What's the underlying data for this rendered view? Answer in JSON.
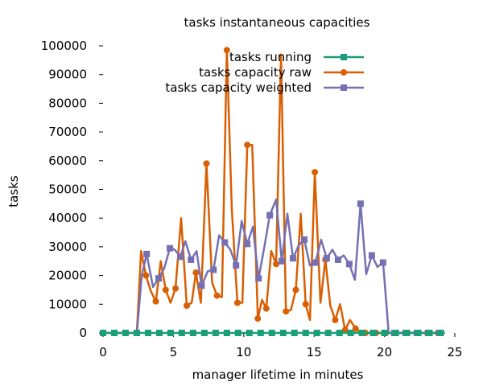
{
  "chart_data": {
    "type": "line",
    "title": "tasks instantaneous capacities",
    "xlabel": "manager lifetime in minutes",
    "ylabel": "tasks",
    "xlim": [
      0,
      25
    ],
    "ylim": [
      0,
      100000
    ],
    "xticks": [
      0,
      5,
      10,
      15,
      20,
      25
    ],
    "yticks": [
      0,
      10000,
      20000,
      30000,
      40000,
      50000,
      60000,
      70000,
      80000,
      90000,
      100000
    ],
    "xtick_labels": [
      "0",
      "5",
      "10",
      "15",
      "20",
      "25"
    ],
    "ytick_labels": [
      "0",
      "10000",
      "20000",
      "30000",
      "40000",
      "50000",
      "60000",
      "70000",
      "80000",
      "90000",
      "100000"
    ],
    "grid": false,
    "legend_position": "top-right",
    "series": [
      {
        "name": "tasks running",
        "color": "#1a9e77",
        "marker": "square",
        "marker_every": 2,
        "x": [
          0,
          0.4,
          0.8,
          1.2,
          1.6,
          2,
          2.4,
          2.8,
          3.2,
          3.6,
          4,
          4.4,
          4.8,
          5.2,
          5.6,
          6,
          6.4,
          6.8,
          7.2,
          7.6,
          8,
          8.4,
          8.8,
          9.2,
          9.6,
          10,
          10.4,
          10.8,
          11.2,
          11.6,
          12,
          12.4,
          12.8,
          13.2,
          13.6,
          14,
          14.4,
          14.8,
          15.2,
          15.6,
          16,
          16.4,
          16.8,
          17.2,
          17.6,
          18,
          18.4,
          18.8,
          19.2,
          19.6,
          20,
          20.4,
          20.8,
          21.2,
          21.6,
          22,
          22.4,
          22.8,
          23.2,
          23.6,
          24
        ],
        "y": [
          0,
          0,
          0,
          0,
          0,
          0,
          0,
          0,
          0,
          0,
          0,
          0,
          0,
          0,
          0,
          0,
          0,
          0,
          0,
          0,
          0,
          0,
          0,
          0,
          0,
          0,
          0,
          0,
          0,
          0,
          0,
          0,
          0,
          0,
          0,
          0,
          0,
          0,
          0,
          0,
          0,
          0,
          0,
          0,
          0,
          0,
          0,
          0,
          0,
          0,
          0,
          0,
          0,
          0,
          0,
          0,
          0,
          0,
          0,
          0,
          0
        ]
      },
      {
        "name": "tasks capacity raw",
        "color": "#d95f02",
        "marker": "circle",
        "marker_every": 2,
        "x": [
          0,
          0.4,
          0.8,
          1.2,
          1.6,
          2,
          2.4,
          2.7,
          3.05,
          3.4,
          3.75,
          4.1,
          4.45,
          4.8,
          5.15,
          5.55,
          5.95,
          6.3,
          6.6,
          6.95,
          7.35,
          7.75,
          8.1,
          8.45,
          8.8,
          9.15,
          9.55,
          9.9,
          10.25,
          10.6,
          11.0,
          11.3,
          11.6,
          11.95,
          12.3,
          12.65,
          13.0,
          13.35,
          13.7,
          14.05,
          14.4,
          14.7,
          15.05,
          15.45,
          15.8,
          16.15,
          16.5,
          16.85,
          17.2,
          17.55,
          17.95,
          18.3,
          18.65,
          19.0,
          19.4,
          19.75,
          20.1,
          20.45,
          20.8,
          21.15,
          21.55,
          21.9,
          22.3,
          22.65,
          23.05,
          23.4,
          23.8,
          24.2
        ],
        "y": [
          0,
          0,
          0,
          0,
          0,
          0,
          0,
          28500,
          20000,
          14500,
          11000,
          25000,
          15000,
          10500,
          15500,
          40000,
          9500,
          10500,
          21000,
          10500,
          59000,
          17500,
          13000,
          12500,
          98500,
          43500,
          10500,
          10500,
          65500,
          65500,
          5000,
          11500,
          8500,
          28500,
          24000,
          97000,
          7500,
          8000,
          15000,
          41500,
          10000,
          4500,
          56000,
          10500,
          25500,
          9500,
          4500,
          10000,
          1000,
          4500,
          1500,
          0,
          0,
          0,
          0,
          0,
          0,
          0,
          0,
          0,
          0,
          0,
          0,
          0,
          0,
          0,
          0,
          0
        ]
      },
      {
        "name": "tasks capacity weighted",
        "color": "#7570b3",
        "marker": "square",
        "marker_every": 2,
        "x": [
          0,
          0.4,
          0.8,
          1.2,
          1.6,
          2,
          2.4,
          2.75,
          3.1,
          3.55,
          3.95,
          4.35,
          4.75,
          5.1,
          5.5,
          5.85,
          6.25,
          6.65,
          7.0,
          7.45,
          7.85,
          8.25,
          8.65,
          9.05,
          9.45,
          9.85,
          10.25,
          10.65,
          11.05,
          11.45,
          11.85,
          12.3,
          12.7,
          13.1,
          13.5,
          13.9,
          14.3,
          14.7,
          15.1,
          15.5,
          15.9,
          16.3,
          16.7,
          17.1,
          17.5,
          17.9,
          18.3,
          18.7,
          19.1,
          19.5,
          19.9,
          20.3,
          20.7,
          21.1,
          21.5,
          21.9,
          22.3,
          22.7,
          23.1,
          23.5,
          23.9,
          24.3
        ],
        "y": [
          0,
          0,
          0,
          0,
          0,
          0,
          0,
          20000,
          27500,
          16000,
          19000,
          22500,
          29500,
          29000,
          26500,
          32000,
          25500,
          28500,
          16500,
          21500,
          22000,
          34000,
          31500,
          29000,
          23500,
          39000,
          31000,
          37000,
          19000,
          29500,
          41000,
          46500,
          25000,
          41500,
          26000,
          30500,
          32500,
          23500,
          24500,
          32500,
          26000,
          29000,
          25500,
          27000,
          24000,
          18500,
          45000,
          20500,
          27000,
          23000,
          24500,
          0,
          0,
          0,
          0,
          0,
          0,
          0,
          0,
          0,
          0,
          0
        ]
      }
    ]
  }
}
